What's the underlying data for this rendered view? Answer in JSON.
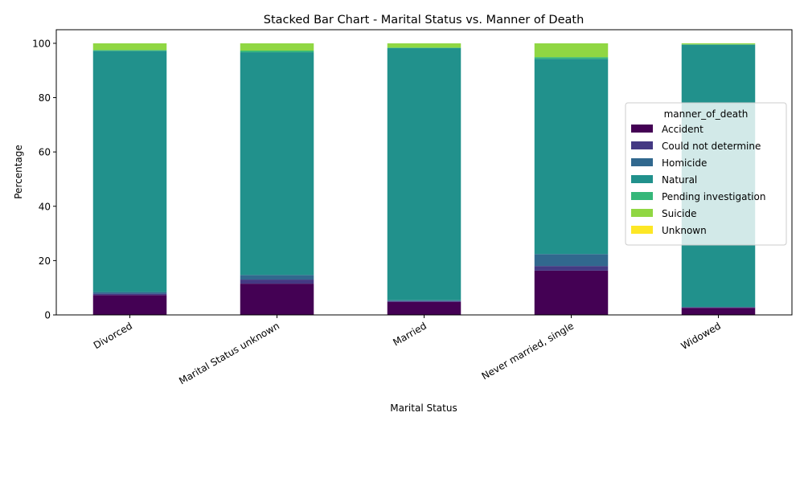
{
  "chart_data": {
    "type": "bar",
    "stacked": true,
    "title": "Stacked Bar Chart - Marital Status vs. Manner of Death",
    "xlabel": "Marital Status",
    "ylabel": "Percentage",
    "ylim": [
      0,
      105
    ],
    "yticks": [
      0,
      20,
      40,
      60,
      80,
      100
    ],
    "grid": false,
    "legend_title": "manner_of_death",
    "legend_position": "center-right",
    "categories": [
      "Divorced",
      "Marital Status unknown",
      "Married",
      "Never married, single",
      "Widowed"
    ],
    "series": [
      {
        "name": "Accident",
        "color": "#440154",
        "values": [
          7.3,
          11.5,
          4.8,
          16.3,
          2.6
        ]
      },
      {
        "name": "Could not determine",
        "color": "#443983",
        "values": [
          0.5,
          1.5,
          0.3,
          1.7,
          0.2
        ]
      },
      {
        "name": "Homicide",
        "color": "#31688e",
        "values": [
          0.6,
          1.7,
          0.3,
          4.4,
          0.1
        ]
      },
      {
        "name": "Natural",
        "color": "#21918c",
        "values": [
          88.8,
          82.0,
          92.8,
          71.9,
          96.6
        ]
      },
      {
        "name": "Pending investigation",
        "color": "#35b779",
        "values": [
          0.3,
          0.6,
          0.2,
          0.6,
          0.1
        ]
      },
      {
        "name": "Suicide",
        "color": "#90d743",
        "values": [
          2.5,
          2.7,
          1.6,
          5.1,
          0.4
        ]
      },
      {
        "name": "Unknown",
        "color": "#fde725",
        "values": [
          0.0,
          0.0,
          0.0,
          0.0,
          0.0
        ]
      }
    ]
  }
}
